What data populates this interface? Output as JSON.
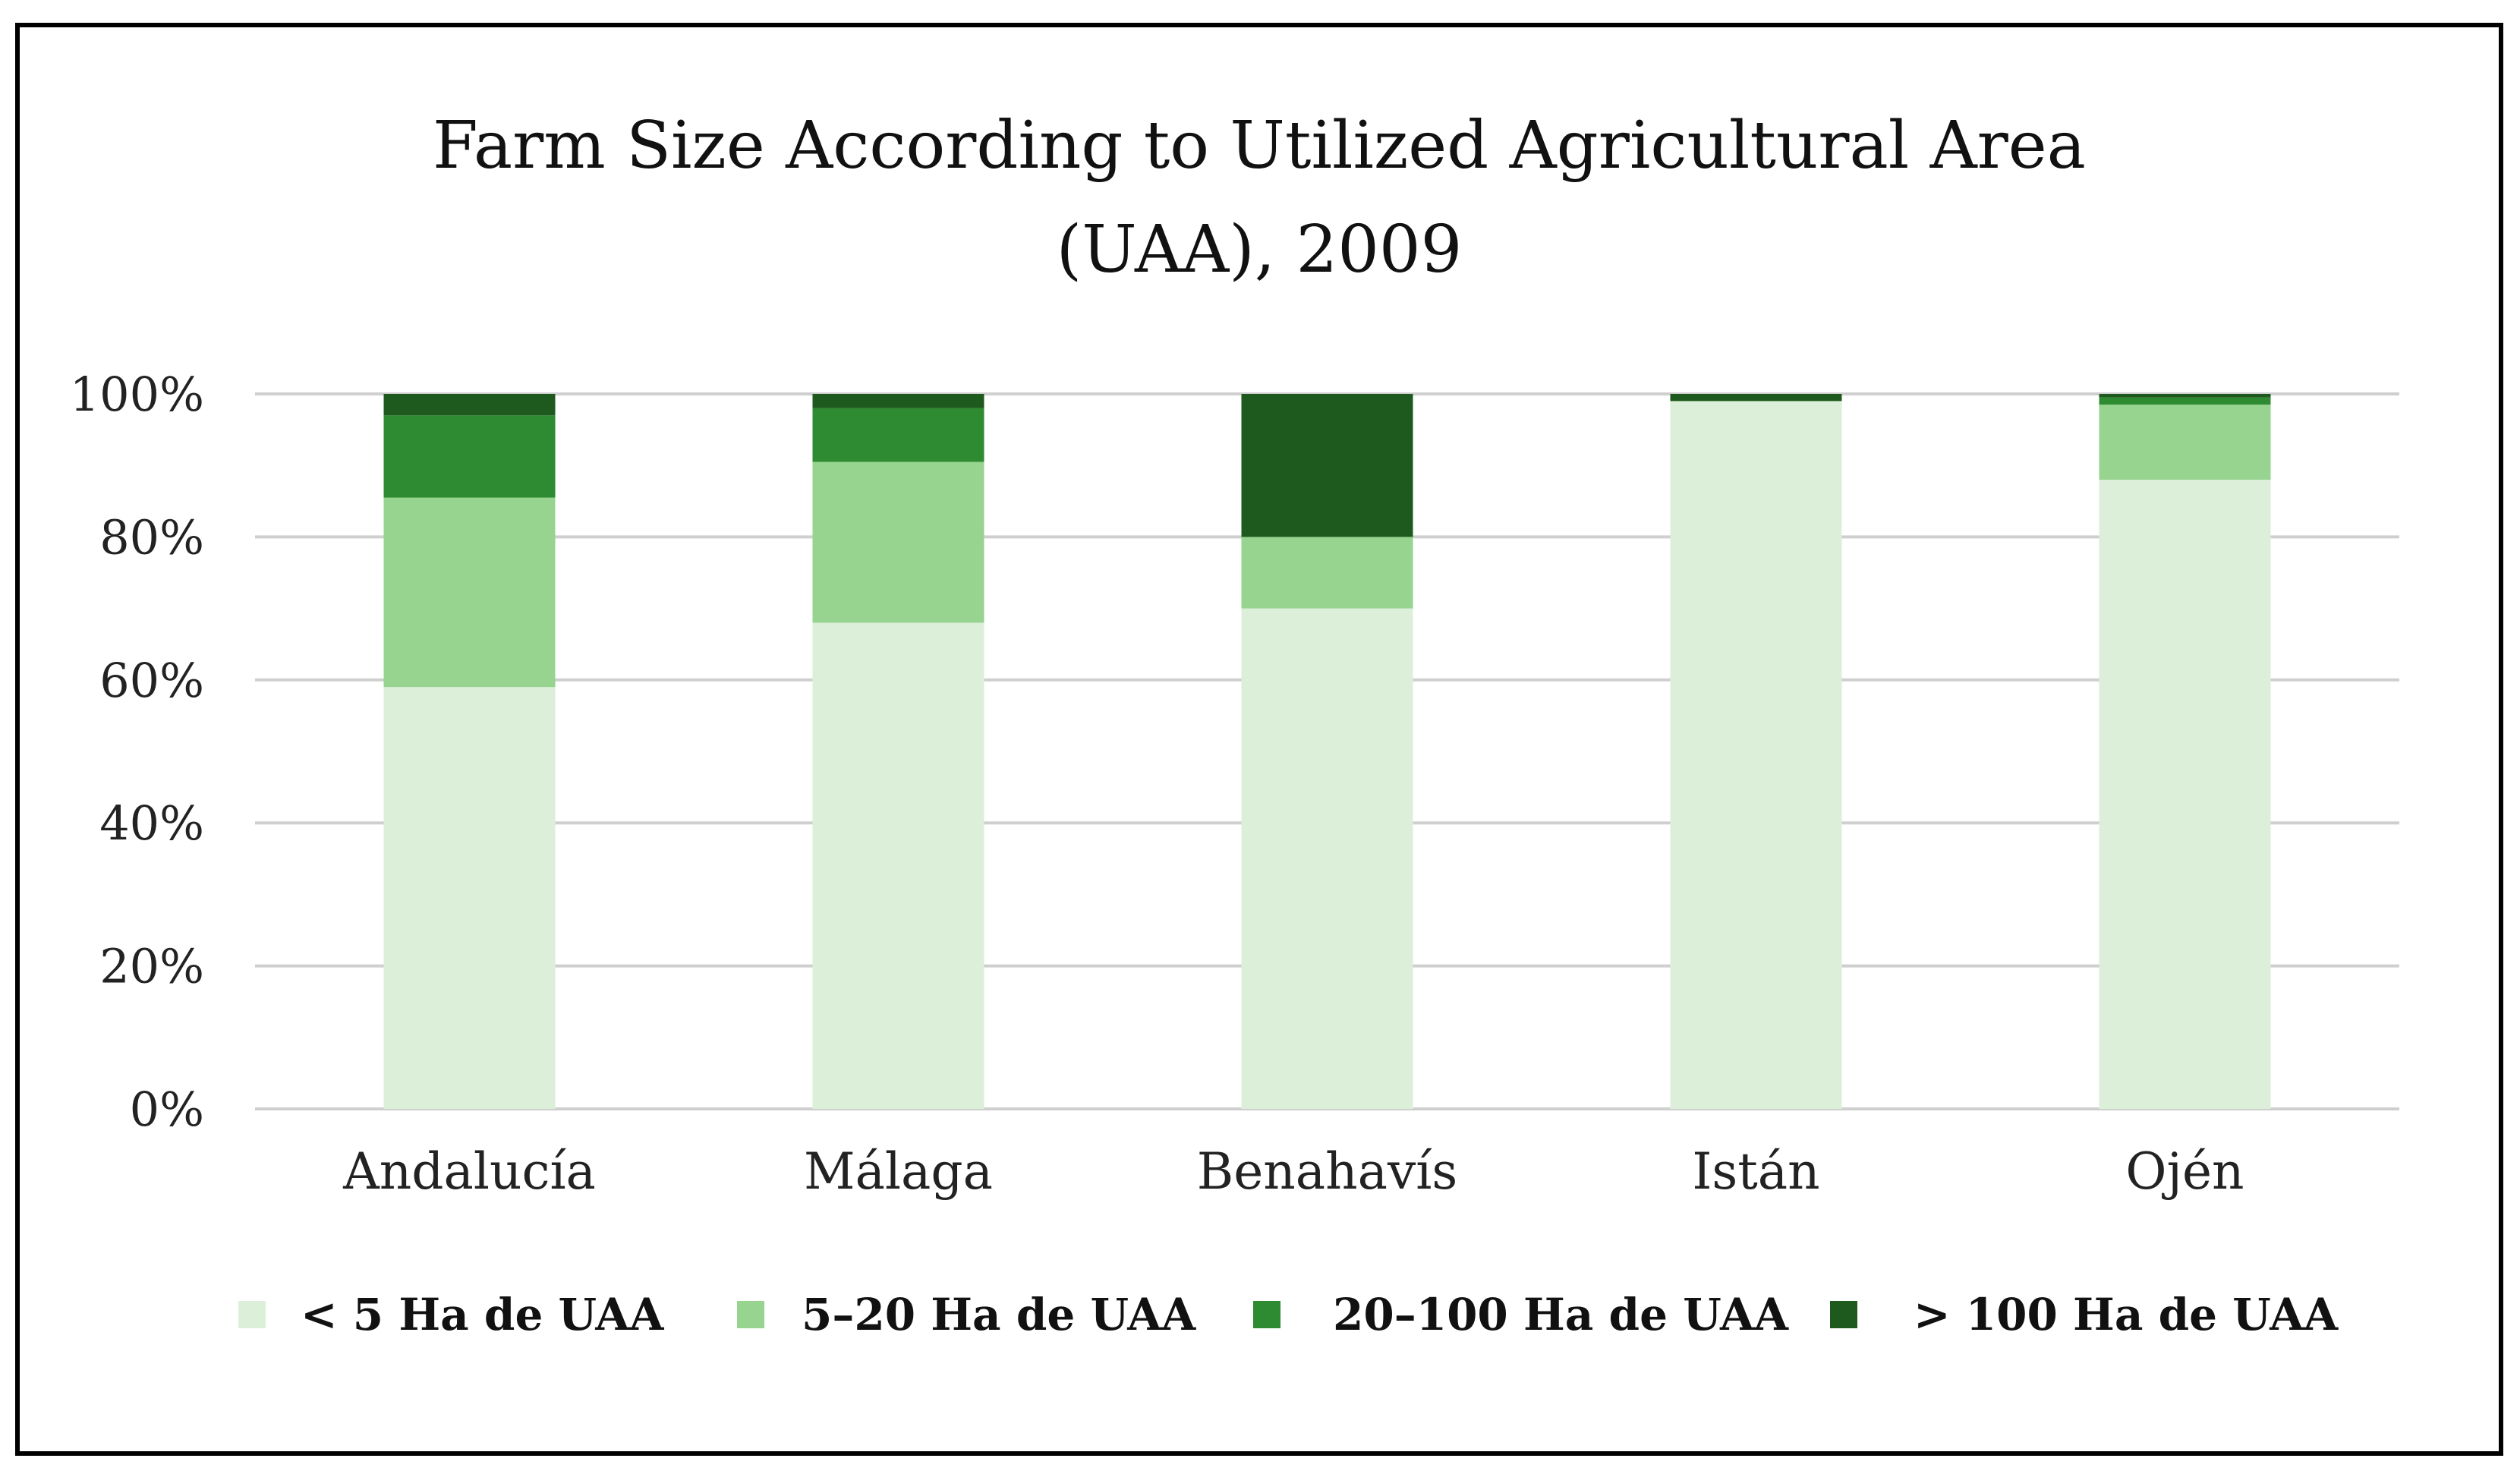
{
  "chart_data": {
    "type": "bar",
    "stacked": true,
    "title": "Farm Size According to Utilized Agricultural Area (UAA), 2009",
    "title_lines": [
      "Farm Size According to Utilized Agricultural Area",
      "(UAA), 2009"
    ],
    "xlabel": "",
    "ylabel": "",
    "ylim": [
      0,
      100
    ],
    "y_ticks": [
      0,
      20,
      40,
      60,
      80,
      100
    ],
    "y_tick_labels": [
      "0%",
      "20%",
      "40%",
      "60%",
      "80%",
      "100%"
    ],
    "grid": true,
    "legend_position": "bottom",
    "categories": [
      "Andalucía",
      "Málaga",
      "Benahavís",
      "Istán",
      "Ojén"
    ],
    "series": [
      {
        "name": "< 5 Ha de UAA",
        "color": "#dcefd9",
        "values": [
          59,
          68,
          70,
          99,
          88
        ]
      },
      {
        "name": "5–20 Ha de UAA",
        "color": "#96d48f",
        "values": [
          26.5,
          22.5,
          10,
          0,
          10.5
        ]
      },
      {
        "name": "20–100 Ha de UAA",
        "color": "#2e8b31",
        "values": [
          11.5,
          7.5,
          0,
          0,
          1
        ]
      },
      {
        "name": "> 100 Ha de UAA",
        "color": "#1e5a1e",
        "values": [
          3,
          2,
          20,
          1,
          0.5
        ]
      }
    ]
  }
}
